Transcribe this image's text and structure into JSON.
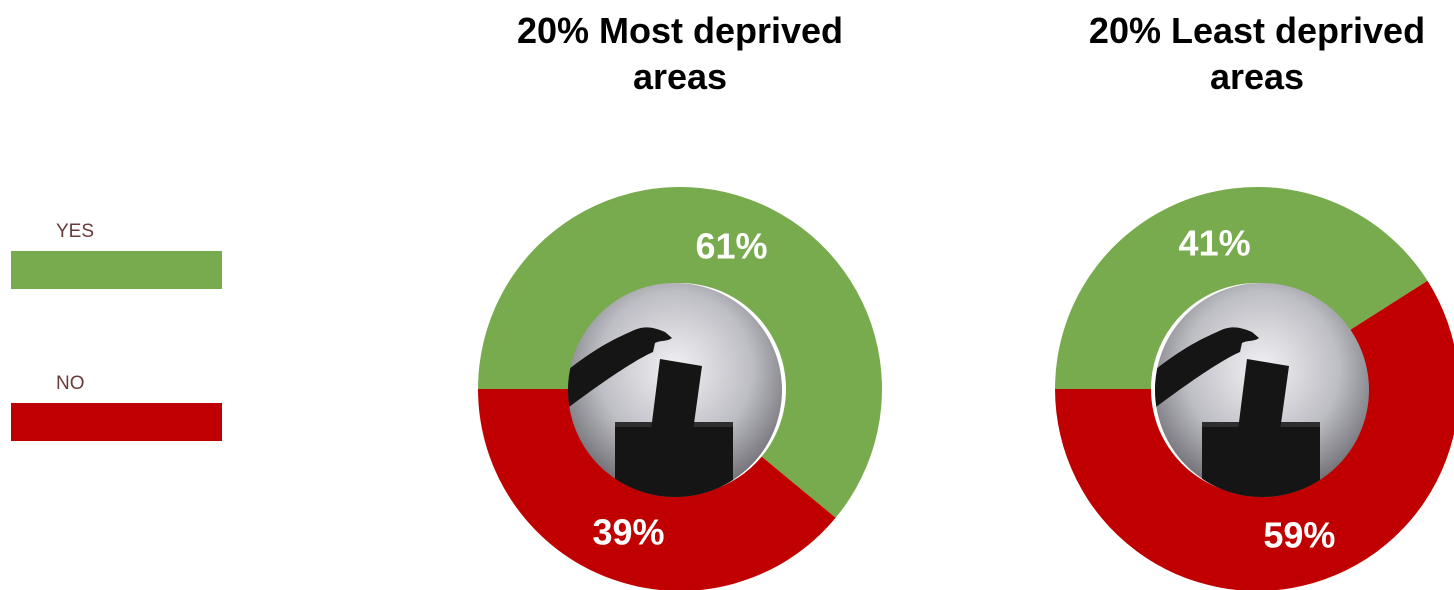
{
  "chart_data": [
    {
      "type": "donut",
      "title": "20% Most deprived areas",
      "categories": [
        "YES",
        "NO"
      ],
      "values": [
        61,
        39
      ],
      "value_labels": [
        "61%",
        "39%"
      ],
      "colors": [
        "#78ab4e",
        "#c00000"
      ]
    },
    {
      "type": "donut",
      "title": "20% Least deprived areas",
      "categories": [
        "YES",
        "NO"
      ],
      "values": [
        41,
        59
      ],
      "value_labels": [
        "41%",
        "59%"
      ],
      "colors": [
        "#78ab4e",
        "#c00000"
      ]
    }
  ]
}
